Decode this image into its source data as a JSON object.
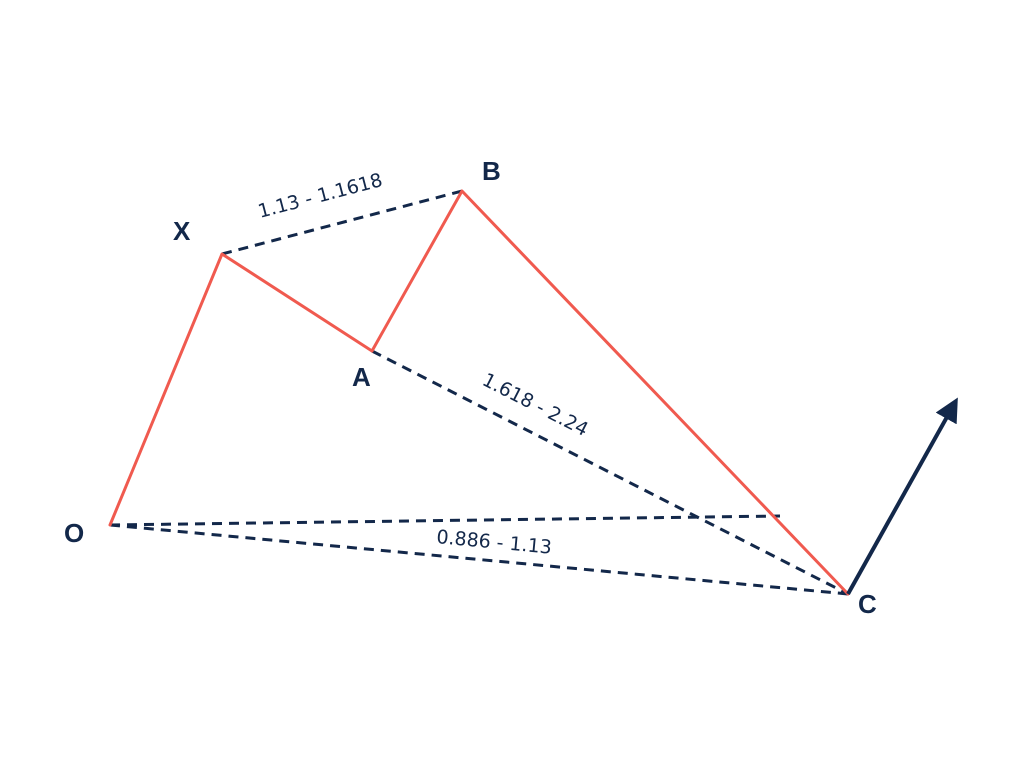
{
  "colors": {
    "leg": "#f05a4f",
    "dashed": "#13284a",
    "text": "#13284a",
    "arrow": "#13284a",
    "background": "#ffffff"
  },
  "points": {
    "O": "O",
    "X": "X",
    "A": "A",
    "B": "B",
    "C": "C"
  },
  "ratios": {
    "xb": "1.13 - 1.1618",
    "ac": "1.618 - 2.24",
    "oc": "0.886 - 1.13"
  },
  "arrow_icon": "arrow-up-right-icon"
}
